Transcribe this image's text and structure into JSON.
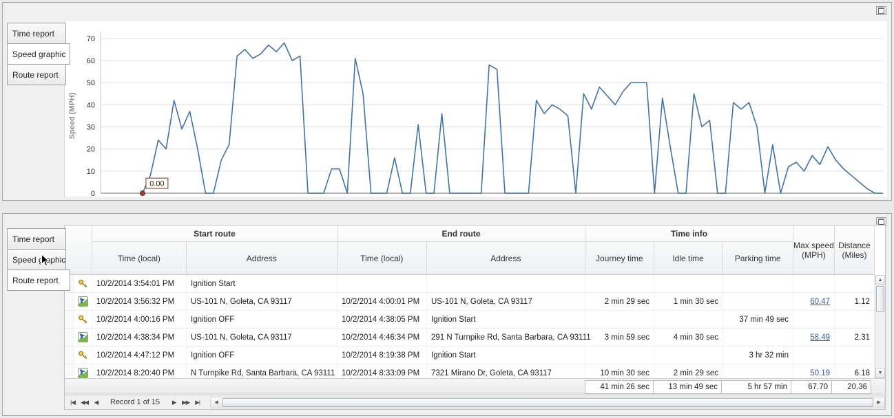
{
  "colors": {
    "chart_line": "#4272a4",
    "link": "#2a5db0",
    "annotation_border": "#8b2a2a",
    "marker": "#9e3a38"
  },
  "top_panel": {
    "tabs": [
      {
        "label": "Time report",
        "selected": false
      },
      {
        "label": "Speed graphic",
        "selected": true
      },
      {
        "label": "Route report",
        "selected": false
      }
    ]
  },
  "chart_data": {
    "type": "line",
    "title": "",
    "xlabel": "",
    "ylabel": "Speed (MPH)",
    "ylim": [
      0,
      70
    ],
    "yticks": [
      0,
      10,
      20,
      30,
      40,
      50,
      60,
      70
    ],
    "grid": true,
    "legend": false,
    "annotation": {
      "label": "0.00",
      "at_index": 0
    },
    "series": [
      {
        "name": "Speed (MPH)",
        "color": "#4272a4",
        "values": [
          0,
          8,
          24,
          20,
          42,
          29,
          37,
          20,
          0,
          0,
          15,
          22,
          62,
          65,
          61,
          63,
          67,
          64,
          68,
          60,
          62,
          0,
          0,
          0,
          11,
          11,
          0,
          61,
          45,
          0,
          0,
          0,
          16,
          0,
          0,
          31,
          0,
          0,
          36,
          0,
          0,
          0,
          0,
          0,
          58,
          56,
          0,
          0,
          0,
          0,
          42,
          36,
          40,
          38,
          35,
          0,
          45,
          38,
          48,
          44,
          40,
          46,
          50,
          50,
          50,
          0,
          43,
          21,
          0,
          0,
          45,
          30,
          33,
          0,
          0,
          41,
          38,
          41,
          30,
          0,
          22,
          0,
          12,
          14,
          10,
          17,
          13,
          21,
          15,
          11,
          8,
          5,
          2,
          0,
          0
        ]
      }
    ]
  },
  "bottom_panel": {
    "tabs": [
      {
        "label": "Time report",
        "selected": false
      },
      {
        "label": "Speed graphic",
        "selected": false
      },
      {
        "label": "Route report",
        "selected": true
      }
    ],
    "grid": {
      "groups": {
        "start": "Start route",
        "end": "End route",
        "time": "Time info"
      },
      "columns": {
        "start_time": "Time (local)",
        "start_address": "Address",
        "end_time": "Time (local)",
        "end_address": "Address",
        "journey": "Journey time",
        "idle": "Idle time",
        "parking": "Parking time",
        "max_speed_line1": "Max speed",
        "max_speed_line2": "(MPH)",
        "distance_line1": "Distance",
        "distance_line2": "(Miles)"
      },
      "rows": [
        {
          "icon": "key",
          "start_time": "10/2/2014 3:54:01 PM",
          "start_address": "Ignition Start",
          "end_time": "",
          "end_address": "",
          "journey": "",
          "idle": "",
          "parking": "",
          "max_speed": "",
          "max_speed_link": false,
          "distance": ""
        },
        {
          "icon": "route",
          "start_time": "10/2/2014 3:56:32 PM",
          "start_address": "US-101 N, Goleta, CA 93117",
          "end_time": "10/2/2014 4:00:01 PM",
          "end_address": "US-101 N, Goleta, CA 93117",
          "journey": "2 min 29 sec",
          "idle": "1 min 30 sec",
          "parking": "",
          "max_speed": "60.47",
          "max_speed_link": true,
          "distance": "1.12"
        },
        {
          "icon": "key",
          "start_time": "10/2/2014 4:00:16 PM",
          "start_address": "Ignition OFF",
          "end_time": "10/2/2014 4:38:05 PM",
          "end_address": "Ignition Start",
          "journey": "",
          "idle": "",
          "parking": "37 min 49 sec",
          "max_speed": "",
          "max_speed_link": false,
          "distance": ""
        },
        {
          "icon": "route",
          "start_time": "10/2/2014 4:38:34 PM",
          "start_address": "US-101 N, Goleta, CA 93117",
          "end_time": "10/2/2014 4:46:34 PM",
          "end_address": "291 N Turnpike Rd, Santa Barbara, CA 93111",
          "journey": "3 min 59 sec",
          "idle": "4 min 30 sec",
          "parking": "",
          "max_speed": "58.49",
          "max_speed_link": true,
          "distance": "2.31"
        },
        {
          "icon": "key",
          "start_time": "10/2/2014 4:47:12 PM",
          "start_address": "Ignition OFF",
          "end_time": "10/2/2014 8:19:38 PM",
          "end_address": "Ignition Start",
          "journey": "",
          "idle": "",
          "parking": "3 hr 32 min",
          "max_speed": "",
          "max_speed_link": false,
          "distance": ""
        },
        {
          "icon": "route",
          "start_time": "10/2/2014 8:20:40 PM",
          "start_address": "N Turnpike Rd, Santa Barbara, CA 93111",
          "end_time": "10/2/2014 8:33:09 PM",
          "end_address": "7321 Mirano Dr, Goleta, CA 93117",
          "journey": "10 min 30 sec",
          "idle": "2 min 29 sec",
          "parking": "",
          "max_speed": "50.19",
          "max_speed_link": false,
          "distance": "6.18"
        }
      ],
      "summary": {
        "journey": "41 min 26 sec",
        "idle": "13 min 49 sec",
        "parking": "5 hr 57 min",
        "max_speed": "67.70",
        "distance": "20.36"
      },
      "pager": {
        "first": "|◀",
        "prev_page": "◀◀",
        "prev": "◀",
        "text": "Record 1 of 15",
        "next": "▶",
        "next_page": "▶▶",
        "last": "▶|"
      },
      "scrollbar": {
        "up": "▲",
        "down": "▼",
        "left": "◀",
        "right": "▶"
      }
    }
  }
}
